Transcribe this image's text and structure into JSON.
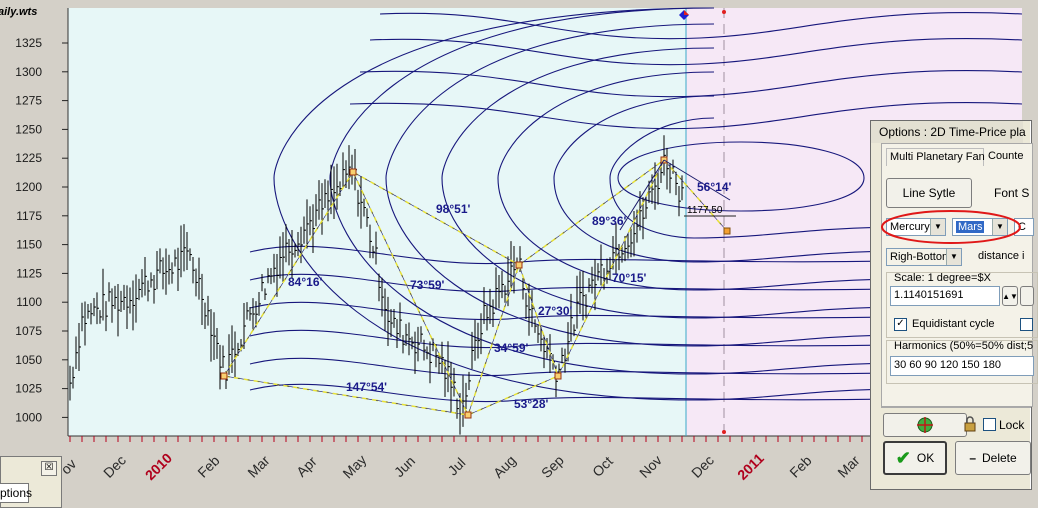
{
  "chart": {
    "title_file": "aily.wts",
    "y_labels": [
      "1325",
      "1300",
      "1275",
      "1250",
      "1225",
      "1200",
      "1175",
      "1150",
      "1125",
      "1100",
      "1075",
      "1050",
      "1025",
      "1000"
    ],
    "x_labels": [
      "ov",
      "Dec",
      "2010",
      "Feb",
      "Mar",
      "Apr",
      "May",
      "Jun",
      "Jul",
      "Aug",
      "Sep",
      "Oct",
      "Nov",
      "Dec",
      "2011",
      "Feb",
      "Mar"
    ],
    "year_labels": [
      "2010",
      "2011"
    ],
    "angle_labels": [
      "84°16'",
      "147°54'",
      "73°59'",
      "98°51'",
      "34°59'",
      "53°28'",
      "27°30'",
      "89°36'",
      "70°15'",
      "56°14'"
    ],
    "price_label": "1177.50",
    "colors": {
      "plot_bg": "#e7f7f7",
      "future_bg": "#f6e8f6",
      "contour": "#17177c",
      "pattern": "#e8e234",
      "bars": "#000000",
      "marker_red": "#e02020",
      "marker_blue": "#2020d0"
    }
  },
  "dialog": {
    "title": "Options : 2D Time-Price pla",
    "tabs": [
      "Multi Planetary Fan",
      "Counte"
    ],
    "line_style_button": "Line Sytle",
    "font_label": "Font S",
    "planet1": "Mercury",
    "planet2": "Mars",
    "planet3": "C",
    "corner": "Righ-Bottom",
    "distance_label": "distance i",
    "scale_label": "Scale: 1 degree=$X",
    "scale_value": "1.1140151691",
    "equidistant_label": "Equidistant cycle",
    "equidistant_checked": "✓",
    "harmonics_label": "Harmonics (50%=50% dist;5",
    "harmonics_value": "30 60 90 120 150 180",
    "lock_label": "Lock",
    "ok_label": "OK",
    "delete_label": "Delete",
    "ok_icon": "check-icon",
    "lock_icon": "padlock-icon",
    "target_icon": "crosshair-icon"
  },
  "mini_window": {
    "tab_label": "ptions"
  }
}
